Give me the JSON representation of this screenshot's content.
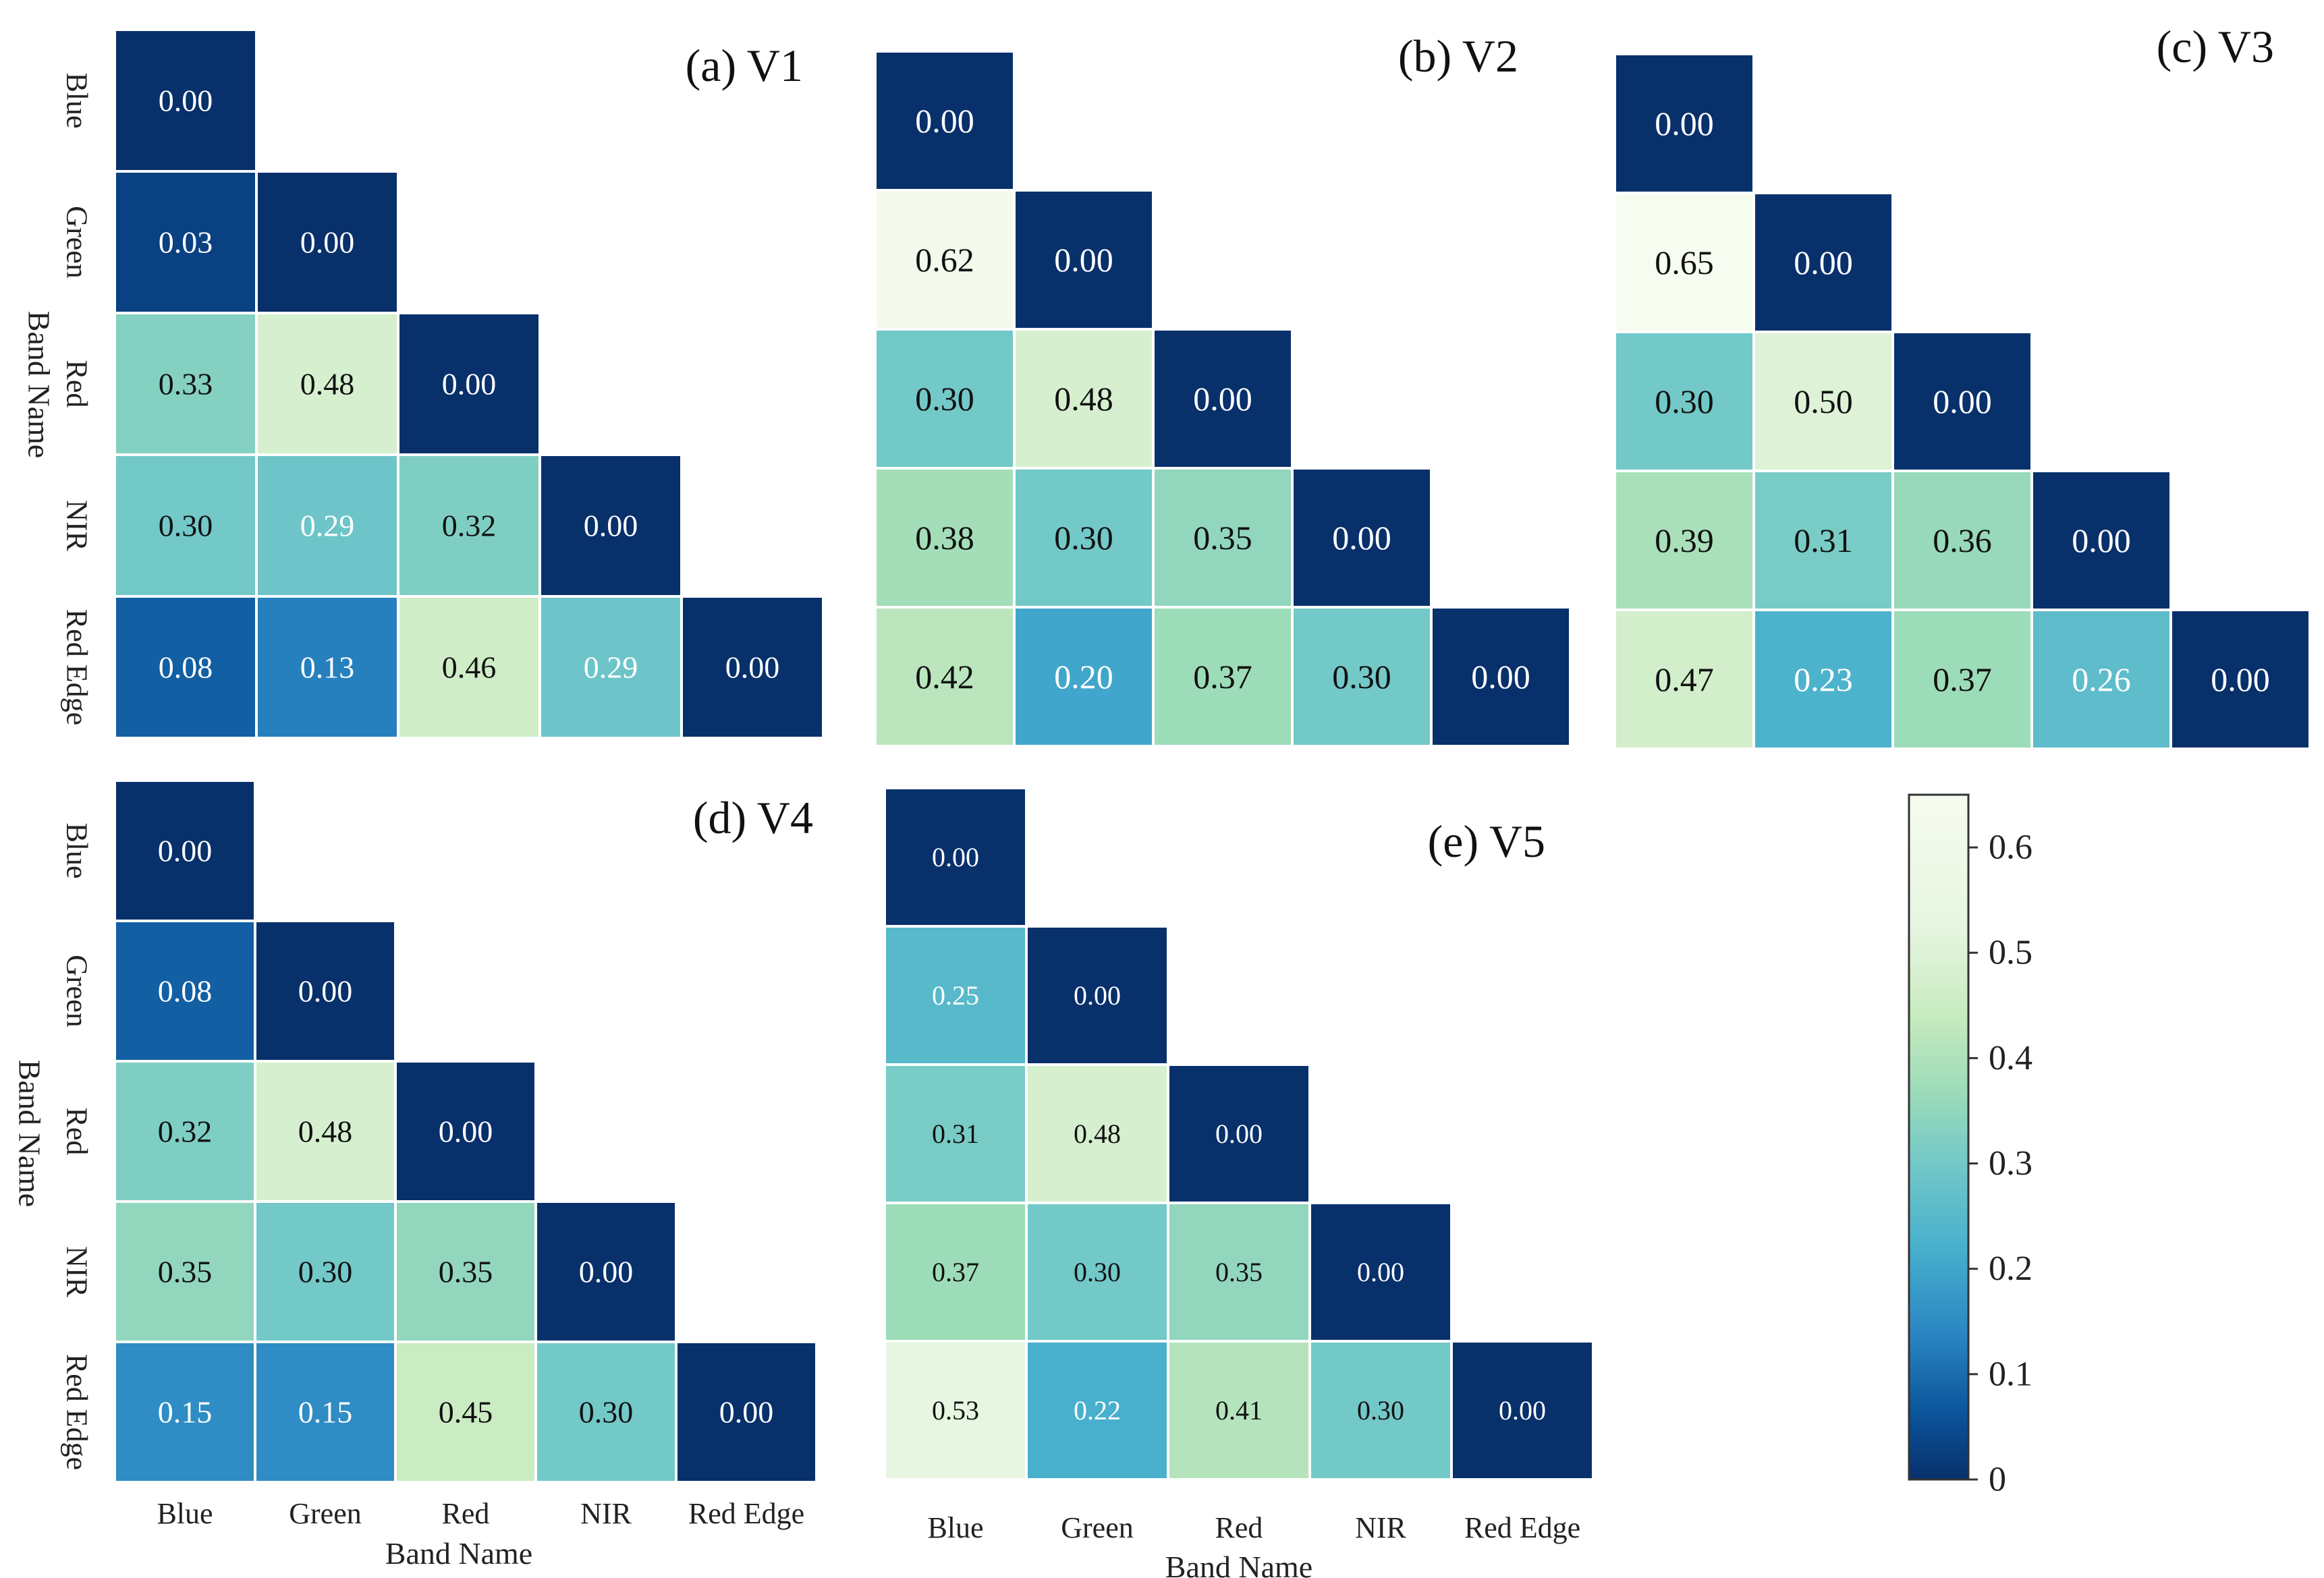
{
  "chart_data": {
    "type": "heatmap",
    "shape": "lower-triangular",
    "bands": [
      "Blue",
      "Green",
      "Red",
      "NIR",
      "Red Edge"
    ],
    "axis_title": "Band Name",
    "value_format": "2 decimals",
    "colormap": {
      "name": "GnBu_r",
      "range": [
        0,
        0.65
      ],
      "stops": [
        {
          "v": 0.0,
          "color": "#08306b"
        },
        {
          "v": 0.06,
          "color": "#0a5299"
        },
        {
          "v": 0.14,
          "color": "#2b87c3"
        },
        {
          "v": 0.22,
          "color": "#48b0cd"
        },
        {
          "v": 0.3,
          "color": "#73c8c8"
        },
        {
          "v": 0.37,
          "color": "#9ddcb8"
        },
        {
          "v": 0.44,
          "color": "#c7eabf"
        },
        {
          "v": 0.52,
          "color": "#e5f5df"
        },
        {
          "v": 0.65,
          "color": "#f7fcf0"
        }
      ]
    },
    "panels": [
      {
        "title": "(a) V1",
        "show_y_labels": true,
        "show_x_labels": false,
        "rows": [
          [
            0.0
          ],
          [
            0.03,
            0.0
          ],
          [
            0.33,
            0.48,
            0.0
          ],
          [
            0.3,
            0.29,
            0.32,
            0.0
          ],
          [
            0.08,
            0.13,
            0.46,
            0.29,
            0.0
          ]
        ]
      },
      {
        "title": "(b) V2",
        "show_y_labels": false,
        "show_x_labels": false,
        "rows": [
          [
            0.0
          ],
          [
            0.62,
            0.0
          ],
          [
            0.3,
            0.48,
            0.0
          ],
          [
            0.38,
            0.3,
            0.35,
            0.0
          ],
          [
            0.42,
            0.2,
            0.37,
            0.3,
            0.0
          ]
        ]
      },
      {
        "title": "(c) V3",
        "show_y_labels": false,
        "show_x_labels": false,
        "rows": [
          [
            0.0
          ],
          [
            0.65,
            0.0
          ],
          [
            0.3,
            0.5,
            0.0
          ],
          [
            0.39,
            0.31,
            0.36,
            0.0
          ],
          [
            0.47,
            0.23,
            0.37,
            0.26,
            0.0
          ]
        ]
      },
      {
        "title": "(d) V4",
        "show_y_labels": true,
        "show_x_labels": true,
        "rows": [
          [
            0.0
          ],
          [
            0.08,
            0.0
          ],
          [
            0.32,
            0.48,
            0.0
          ],
          [
            0.35,
            0.3,
            0.35,
            0.0
          ],
          [
            0.15,
            0.15,
            0.45,
            0.3,
            0.0
          ]
        ]
      },
      {
        "title": "(e) V5",
        "show_y_labels": false,
        "show_x_labels": true,
        "rows": [
          [
            0.0
          ],
          [
            0.25,
            0.0
          ],
          [
            0.31,
            0.48,
            0.0
          ],
          [
            0.37,
            0.3,
            0.35,
            0.0
          ],
          [
            0.53,
            0.22,
            0.41,
            0.3,
            0.0
          ]
        ]
      }
    ],
    "colorbar": {
      "ticks": [
        0,
        0.1,
        0.2,
        0.3,
        0.4,
        0.5,
        0.6
      ],
      "tick_labels": [
        "0",
        "0.1",
        "0.2",
        "0.3",
        "0.4",
        "0.5",
        "0.6"
      ]
    }
  }
}
